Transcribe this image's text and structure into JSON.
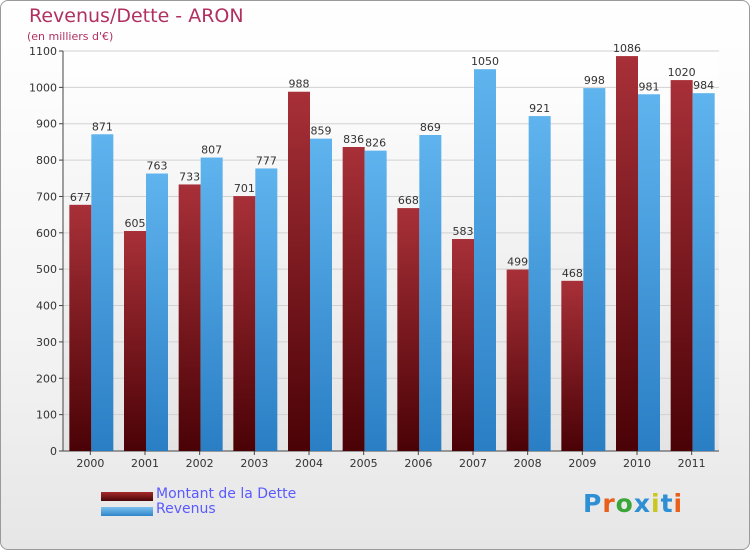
{
  "title": "Revenus/Dette - ARON",
  "subtitle": "(en milliers d'€)",
  "logo": {
    "text": "Proxiti",
    "colors": [
      "#2e8fd4",
      "#e8601c",
      "#3aa63a",
      "#2e8fd4",
      "#c8c820",
      "#2e8fd4",
      "#e8601c"
    ]
  },
  "colors": {
    "dette": "#6b0d12",
    "revenus": "#4aa3e3",
    "title": "#b03060",
    "legend_text": "#5a5aff"
  },
  "chart_data": {
    "type": "bar",
    "title": "Revenus/Dette - ARON",
    "subtitle": "(en milliers d'€)",
    "categories": [
      "2000",
      "2001",
      "2002",
      "2003",
      "2004",
      "2005",
      "2006",
      "2007",
      "2008",
      "2009",
      "2010",
      "2011"
    ],
    "series": [
      {
        "name": "Montant de la Dette",
        "values": [
          677,
          605,
          733,
          701,
          988,
          836,
          668,
          583,
          499,
          468,
          1086,
          1020
        ]
      },
      {
        "name": "Revenus",
        "values": [
          871,
          763,
          807,
          777,
          859,
          826,
          869,
          1050,
          921,
          998,
          981,
          984
        ]
      }
    ],
    "yticks": [
      0,
      100,
      200,
      300,
      400,
      500,
      600,
      700,
      800,
      900,
      1000,
      1100
    ],
    "ylim": [
      0,
      1100
    ],
    "grid": true,
    "legend_position": "bottom-left"
  }
}
